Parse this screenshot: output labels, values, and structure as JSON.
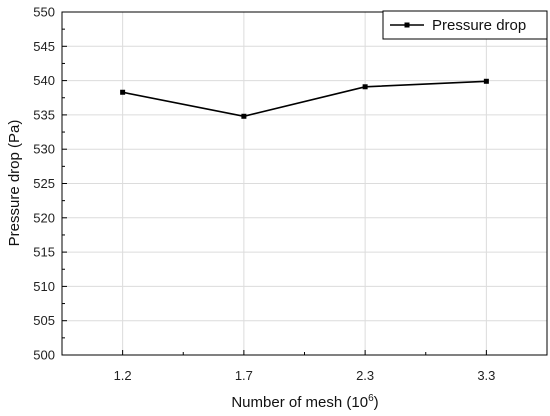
{
  "chart_data": {
    "type": "line",
    "categories": [
      "1.2",
      "1.7",
      "2.3",
      "3.3"
    ],
    "series": [
      {
        "name": "Pressure drop",
        "values": [
          538.3,
          534.8,
          539.1,
          539.9
        ]
      }
    ],
    "xlabel": "Number of mesh (10",
    "xlabel_superscript": "6",
    "xlabel_suffix": ")",
    "ylabel": "Pressure drop (Pa)",
    "ylim": [
      500,
      550
    ],
    "yticks": [
      "500",
      "505",
      "510",
      "515",
      "520",
      "525",
      "530",
      "535",
      "540",
      "545",
      "550"
    ],
    "grid": true,
    "legend": "top-right",
    "line_color": "#000000",
    "grid_color": "#dcdcdc"
  }
}
